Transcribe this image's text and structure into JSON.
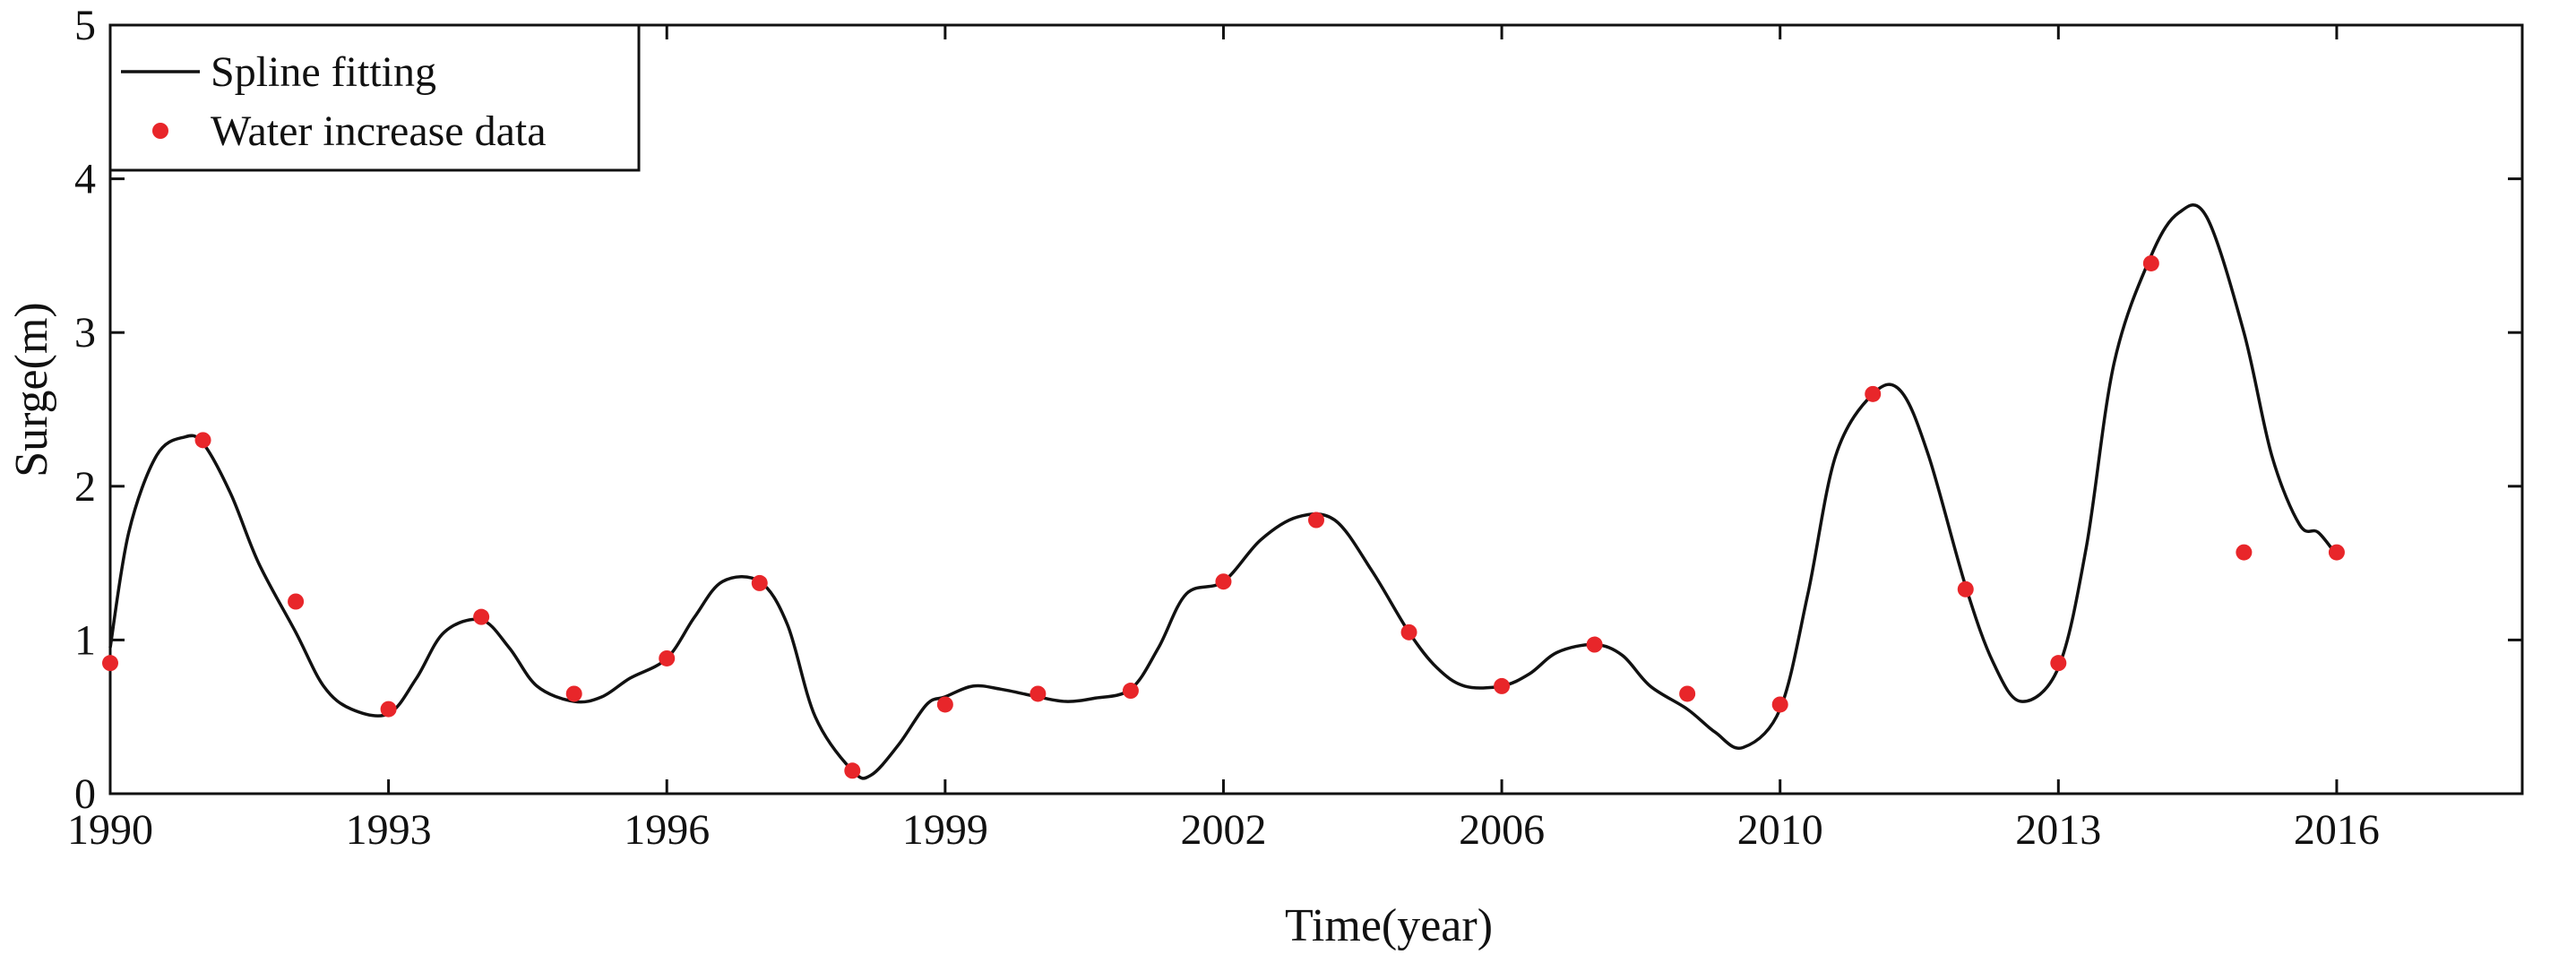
{
  "chart_data": {
    "type": "line",
    "title": "",
    "xlabel": "Time(year)",
    "ylabel": "Surge(m)",
    "ylim": [
      0,
      5
    ],
    "xlim": [
      0,
      26
    ],
    "x_ticks": [
      {
        "pos": 0,
        "label": "1990"
      },
      {
        "pos": 3,
        "label": "1993"
      },
      {
        "pos": 6,
        "label": "1996"
      },
      {
        "pos": 9,
        "label": "1999"
      },
      {
        "pos": 12,
        "label": "2002"
      },
      {
        "pos": 15,
        "label": "2006"
      },
      {
        "pos": 18,
        "label": "2010"
      },
      {
        "pos": 21,
        "label": "2013"
      },
      {
        "pos": 24,
        "label": "2016"
      }
    ],
    "y_ticks": [
      0,
      1,
      2,
      3,
      4,
      5
    ],
    "grid": false,
    "legend": {
      "position": "top-left",
      "entries": [
        "Spline fitting",
        "Water increase data"
      ]
    },
    "series": [
      {
        "name": "Spline fitting",
        "kind": "line",
        "color": "#111111",
        "x": [
          0,
          0.2,
          0.5,
          0.8,
          1,
          1.3,
          1.6,
          2,
          2.3,
          2.6,
          3,
          3.3,
          3.6,
          4,
          4.3,
          4.6,
          5,
          5.3,
          5.6,
          6,
          6.3,
          6.6,
          7,
          7.3,
          7.6,
          8,
          8.2,
          8.5,
          8.8,
          9,
          9.3,
          9.6,
          10,
          10.3,
          10.6,
          11,
          11.3,
          11.6,
          12,
          12.4,
          12.8,
          13.2,
          13.6,
          14,
          14.3,
          14.6,
          15,
          15.3,
          15.6,
          16,
          16.3,
          16.6,
          17,
          17.3,
          17.6,
          18,
          18.3,
          18.6,
          19,
          19.3,
          19.6,
          20,
          20.3,
          20.6,
          21,
          21.3,
          21.6,
          22,
          22.3,
          22.6,
          23,
          23.3,
          23.6,
          23.8,
          24
        ],
        "y": [
          0.95,
          1.7,
          2.2,
          2.32,
          2.28,
          1.95,
          1.5,
          1.05,
          0.7,
          0.55,
          0.52,
          0.75,
          1.05,
          1.13,
          0.95,
          0.7,
          0.6,
          0.63,
          0.75,
          0.88,
          1.15,
          1.38,
          1.38,
          1.1,
          0.5,
          0.15,
          0.12,
          0.32,
          0.58,
          0.63,
          0.7,
          0.68,
          0.63,
          0.6,
          0.62,
          0.68,
          0.95,
          1.3,
          1.38,
          1.65,
          1.8,
          1.78,
          1.45,
          1.05,
          0.82,
          0.7,
          0.7,
          0.78,
          0.92,
          0.97,
          0.9,
          0.7,
          0.55,
          0.4,
          0.3,
          0.55,
          1.3,
          2.2,
          2.6,
          2.62,
          2.2,
          1.35,
          0.85,
          0.6,
          0.82,
          1.6,
          2.8,
          3.5,
          3.78,
          3.75,
          3.0,
          2.2,
          1.75,
          1.7,
          1.55
        ]
      },
      {
        "name": "Water increase data",
        "kind": "scatter",
        "color": "#e8262a",
        "x": [
          0,
          1,
          2,
          3,
          4,
          5,
          6,
          7,
          8,
          9,
          10,
          11,
          12,
          13,
          14,
          15,
          16,
          17,
          18,
          19,
          20,
          21,
          22,
          23,
          24
        ],
        "y": [
          0.85,
          2.3,
          1.25,
          0.55,
          1.15,
          0.65,
          0.88,
          1.37,
          0.15,
          0.58,
          0.65,
          0.67,
          1.38,
          1.78,
          1.05,
          0.7,
          0.97,
          0.65,
          0.58,
          2.6,
          1.33,
          0.85,
          3.45,
          1.57,
          1.57
        ]
      }
    ]
  }
}
